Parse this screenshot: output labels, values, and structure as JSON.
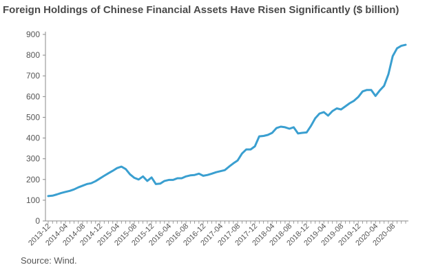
{
  "title": "Foreign Holdings of Chinese Financial Assets Have Risen Significantly ($ billion)",
  "source": "Source: Wind.",
  "colors": {
    "line": "#3a9fd0",
    "axis": "#888888",
    "text": "#555555"
  },
  "chart_data": {
    "type": "line",
    "title": "Foreign Holdings of Chinese Financial Assets Have Risen Significantly ($ billion)",
    "xlabel": "",
    "ylabel": "",
    "ylim": [
      0,
      900
    ],
    "yticks": [
      "0",
      "100",
      "200",
      "300",
      "400",
      "500",
      "600",
      "700",
      "800",
      "900"
    ],
    "xticklabels": [
      "2013-12",
      "2014-04",
      "2014-08",
      "2014-12",
      "2015-04",
      "2015-08",
      "2015-12",
      "2016-04",
      "2016-08",
      "2016-12",
      "2017-04",
      "2017-08",
      "2017-12",
      "2018-04",
      "2018-08",
      "2018-12",
      "2019-04",
      "2019-08",
      "2019-12",
      "2020-04",
      "2020-08"
    ],
    "grid": false,
    "series": [
      {
        "x": [
          "2013-12",
          "2014-01",
          "2014-02",
          "2014-03",
          "2014-04",
          "2014-05",
          "2014-06",
          "2014-07",
          "2014-08",
          "2014-09",
          "2014-10",
          "2014-11",
          "2014-12",
          "2015-01",
          "2015-02",
          "2015-03",
          "2015-04",
          "2015-05",
          "2015-06",
          "2015-07",
          "2015-08",
          "2015-09",
          "2015-10",
          "2015-11",
          "2015-12",
          "2016-01",
          "2016-02",
          "2016-03",
          "2016-04",
          "2016-05",
          "2016-06",
          "2016-07",
          "2016-08",
          "2016-09",
          "2016-10",
          "2016-11",
          "2016-12",
          "2017-01",
          "2017-02",
          "2017-03",
          "2017-04",
          "2017-05",
          "2017-06",
          "2017-07",
          "2017-08",
          "2017-09",
          "2017-10",
          "2017-11",
          "2017-12",
          "2018-01",
          "2018-02",
          "2018-03",
          "2018-04",
          "2018-05",
          "2018-06",
          "2018-07",
          "2018-08",
          "2018-09",
          "2018-10",
          "2018-11",
          "2018-12",
          "2019-01",
          "2019-02",
          "2019-03",
          "2019-04",
          "2019-05",
          "2019-06",
          "2019-07",
          "2019-08",
          "2019-09",
          "2019-10",
          "2019-11",
          "2019-12",
          "2020-01",
          "2020-02",
          "2020-03",
          "2020-04",
          "2020-05",
          "2020-06",
          "2020-07",
          "2020-08",
          "2020-09",
          "2020-10",
          "2020-11"
        ],
        "values": [
          120,
          122,
          128,
          135,
          140,
          145,
          152,
          162,
          170,
          178,
          182,
          192,
          205,
          218,
          230,
          242,
          255,
          262,
          250,
          225,
          208,
          200,
          215,
          193,
          210,
          178,
          180,
          193,
          198,
          198,
          206,
          206,
          215,
          220,
          222,
          228,
          218,
          222,
          228,
          235,
          240,
          245,
          262,
          278,
          292,
          325,
          345,
          345,
          360,
          408,
          410,
          415,
          425,
          448,
          455,
          452,
          445,
          452,
          422,
          425,
          427,
          458,
          495,
          518,
          525,
          508,
          530,
          543,
          538,
          553,
          568,
          580,
          598,
          625,
          632,
          632,
          603,
          630,
          652,
          708,
          795,
          833,
          845,
          850
        ]
      }
    ]
  }
}
